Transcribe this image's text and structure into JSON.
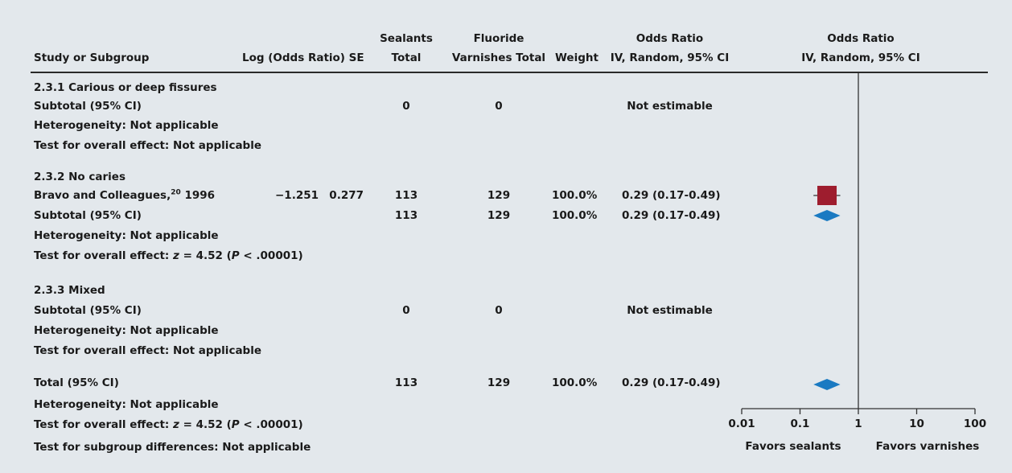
{
  "headers": {
    "study": "Study or Subgroup",
    "log_or_se": "Log (Odds Ratio)  SE",
    "sealants_line1": "Sealants",
    "sealants_line2": "Total",
    "fluoride_line1": "Fluoride",
    "fluoride_line2": "Varnishes Total",
    "weight": "Weight",
    "or_table_line1": "Odds Ratio",
    "or_table_line2": "IV, Random, 95% CI",
    "or_plot_line1": "Odds Ratio",
    "or_plot_line2": "IV, Random, 95% CI"
  },
  "rows": [
    {
      "name": "subgroup-heading",
      "label": "2.3.1 Carious or deep fissures"
    },
    {
      "name": "subtotal-row",
      "label": "Subtotal (95% CI)",
      "sealants": "0",
      "fluoride": "0",
      "or": "Not estimable"
    },
    {
      "name": "heterogeneity-row",
      "label": "Heterogeneity: Not applicable"
    },
    {
      "name": "overall-effect-row",
      "label": "Test for overall effect: Not applicable"
    },
    {
      "name": "subgroup-heading",
      "label": "2.3.2 No caries"
    },
    {
      "name": "study-row",
      "label": "Bravo and Colleagues,",
      "sup": "20",
      "year": "1996",
      "log_or": "−1.251",
      "se": "0.277",
      "sealants": "113",
      "fluoride": "129",
      "weight": "100.0%",
      "or": "0.29 (0.17-0.49)"
    },
    {
      "name": "subtotal-row",
      "label": "Subtotal (95% CI)",
      "sealants": "113",
      "fluoride": "129",
      "weight": "100.0%",
      "or": "0.29 (0.17-0.49)"
    },
    {
      "name": "heterogeneity-row",
      "label": "Heterogeneity: Not applicable"
    },
    {
      "name": "overall-effect-row",
      "label_prefix": "Test for overall effect: ",
      "z_var": "z",
      "z_rest": " = 4.52 (",
      "p_var": "P",
      "p_rest": " < .00001)"
    },
    {
      "name": "subgroup-heading",
      "label": "2.3.3 Mixed"
    },
    {
      "name": "subtotal-row",
      "label": "Subtotal (95% CI)",
      "sealants": "0",
      "fluoride": "0",
      "or": "Not estimable"
    },
    {
      "name": "heterogeneity-row",
      "label": "Heterogeneity: Not applicable"
    },
    {
      "name": "overall-effect-row",
      "label": "Test for overall effect: Not applicable"
    },
    {
      "name": "total-row",
      "label": "Total (95% CI)",
      "sealants": "113",
      "fluoride": "129",
      "weight": "100.0%",
      "or": "0.29 (0.17-0.49)"
    },
    {
      "name": "heterogeneity-row",
      "label": "Heterogeneity: Not applicable"
    },
    {
      "name": "overall-effect-row",
      "label_prefix": "Test for overall effect: ",
      "z_var": "z",
      "z_rest": " = 4.52 (",
      "p_var": "P",
      "p_rest": " < .00001)"
    },
    {
      "name": "subgroup-diff-row",
      "label": "Test for subgroup differences: Not applicable"
    }
  ],
  "chart_data": {
    "type": "forest",
    "scale": "log",
    "xlim": [
      0.01,
      100
    ],
    "ticks": [
      0.01,
      0.1,
      1,
      10,
      100
    ],
    "tick_labels": [
      "0.01",
      "0.1",
      "1",
      "10",
      "100"
    ],
    "null_line": 1,
    "favors_left": "Favors sealants",
    "favors_right": "Favors varnishes",
    "points": [
      {
        "kind": "study",
        "study": "Bravo and Colleagues, 1996",
        "or": 0.29,
        "ci": [
          0.17,
          0.49
        ],
        "weight": 100.0
      },
      {
        "kind": "subtotal",
        "study": "Subtotal (95% CI)",
        "or": 0.29,
        "ci": [
          0.17,
          0.49
        ]
      },
      {
        "kind": "total",
        "study": "Total (95% CI)",
        "or": 0.29,
        "ci": [
          0.17,
          0.49
        ]
      }
    ]
  },
  "colors": {
    "background": "#e3e8ec",
    "study_marker": "#9e1d2e",
    "diamond": "#1a7ac2",
    "text": "#1a1a1a"
  }
}
